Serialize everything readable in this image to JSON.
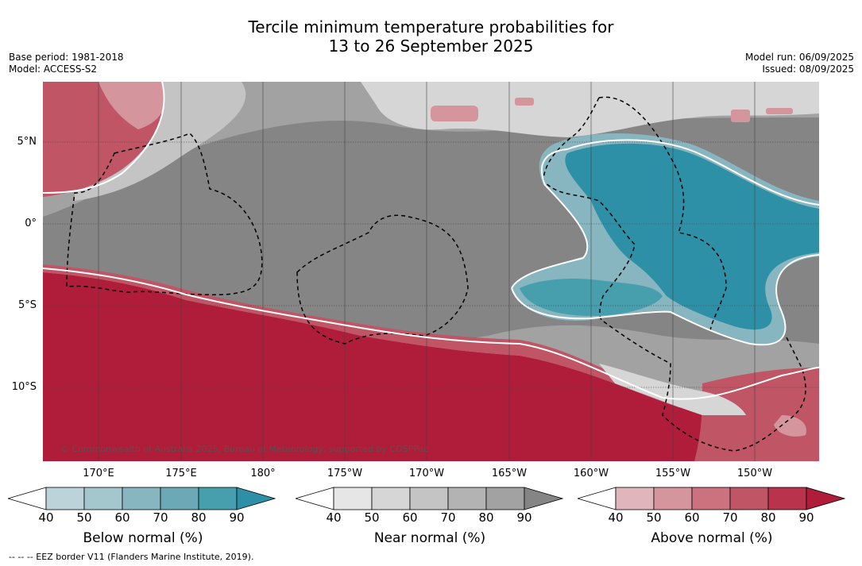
{
  "title_line1": "Tercile minimum temperature probabilities for",
  "title_line2": "13 to 26 September 2025",
  "base_period": "Base period: 1981-2018",
  "model": "Model: ACCESS-S2",
  "model_run": "Model run: 06/09/2025",
  "issued": "Issued: 08/09/2025",
  "latitude_labels": [
    "5°N",
    "0°",
    "5°S",
    "10°S"
  ],
  "longitude_labels": [
    "170°E",
    "175°E",
    "180°",
    "175°W",
    "170°W",
    "165°W",
    "160°W",
    "155°W",
    "150°W"
  ],
  "copyright": "© Commonwealth of Australia 2025, Bureau of Meteorology, supported by COSPPac",
  "legends": [
    {
      "name": "Below normal (%)",
      "ticks": [
        "40",
        "50",
        "60",
        "70",
        "80",
        "90"
      ],
      "colors": [
        "#ffffff",
        "#bcd3da",
        "#a4c6cd",
        "#88b6c0",
        "#6aa9b5",
        "#479fae",
        "#2e90a6"
      ]
    },
    {
      "name": "Near normal (%)",
      "ticks": [
        "40",
        "50",
        "60",
        "70",
        "80",
        "90"
      ],
      "colors": [
        "#ffffff",
        "#e6e6e6",
        "#d6d6d6",
        "#c4c4c4",
        "#b3b3b3",
        "#a2a2a2",
        "#858585"
      ]
    },
    {
      "name": "Above normal (%)",
      "ticks": [
        "40",
        "50",
        "60",
        "70",
        "80",
        "90"
      ],
      "colors": [
        "#ffffff",
        "#e0b5bb",
        "#d5959d",
        "#cb727e",
        "#c05565",
        "#b8334b",
        "#b01d3a"
      ]
    }
  ],
  "footer": "-- -- -- EEZ border V11 (Flanders Marine Institute, 2019)."
}
